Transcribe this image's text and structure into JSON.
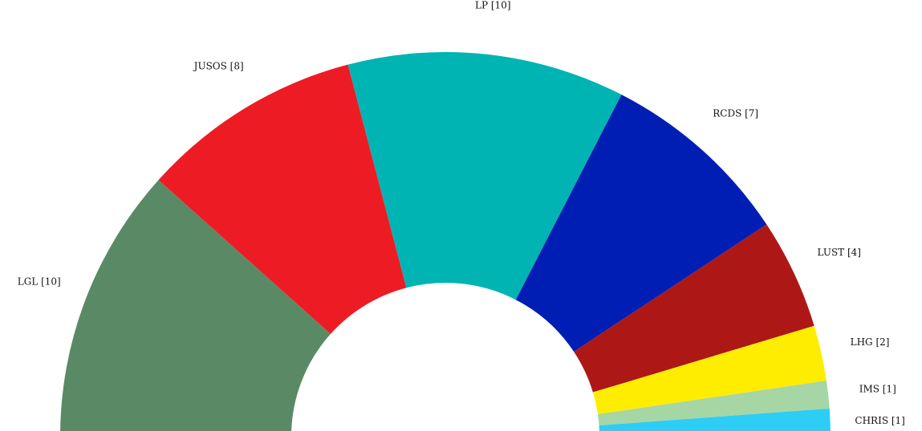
{
  "chart_data": {
    "type": "pie",
    "title": "",
    "categories": [
      "LGL",
      "JUSOS",
      "LP",
      "RCDS",
      "LUST",
      "LHG",
      "IMS",
      "CHRIS"
    ],
    "values": [
      10,
      8,
      10,
      7,
      4,
      2,
      1,
      1
    ],
    "labels": [
      "LGL [10]",
      "JUSOS [8]",
      "LP [10]",
      "RCDS [7]",
      "LUST [4]",
      "LHG [2]",
      "IMS [1]",
      "CHRIS [1]"
    ],
    "colors": [
      "#5a8a65",
      "#ed1c24",
      "#00b4b4",
      "#001eb4",
      "#ad1817",
      "#ffed00",
      "#a6d6a4",
      "#2ecdf5"
    ],
    "style": "semicircle-donut",
    "legend": "none"
  }
}
